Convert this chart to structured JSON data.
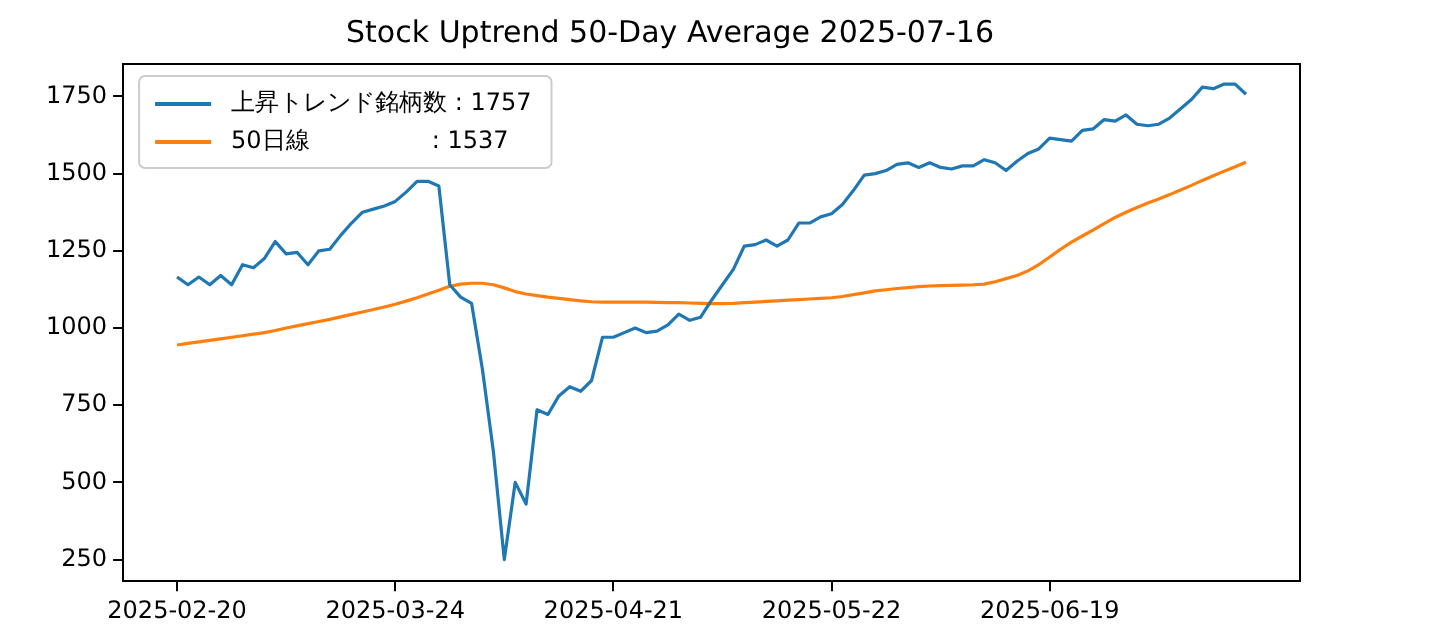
{
  "chart_data": {
    "type": "line",
    "title": "Stock Uptrend 50-Day Average 2025-07-16",
    "categories": [
      "2025-02-20",
      null,
      null,
      null,
      null,
      null,
      null,
      null,
      null,
      null,
      null,
      null,
      null,
      null,
      null,
      null,
      null,
      null,
      null,
      null,
      "2025-03-24",
      null,
      null,
      null,
      null,
      null,
      null,
      null,
      null,
      null,
      null,
      null,
      null,
      null,
      null,
      null,
      null,
      null,
      null,
      null,
      "2025-04-21",
      null,
      null,
      null,
      null,
      null,
      null,
      null,
      null,
      null,
      null,
      null,
      null,
      null,
      null,
      null,
      null,
      null,
      null,
      null,
      "2025-05-22",
      null,
      null,
      null,
      null,
      null,
      null,
      null,
      null,
      null,
      null,
      null,
      null,
      null,
      null,
      null,
      null,
      null,
      null,
      null,
      "2025-06-19",
      null,
      null,
      null,
      null,
      null,
      null,
      null,
      null,
      null,
      null,
      null,
      null,
      null,
      null,
      null,
      null,
      null,
      null
    ],
    "series": [
      {
        "name": "上昇トレンド銘柄数 : 1757",
        "color": "#1f77b4",
        "values": [
          1165,
          1140,
          1165,
          1140,
          1170,
          1140,
          1205,
          1195,
          1225,
          1280,
          1240,
          1245,
          1205,
          1250,
          1255,
          1300,
          1340,
          1375,
          1385,
          1395,
          1410,
          1440,
          1475,
          1475,
          1460,
          1140,
          1100,
          1080,
          865,
          600,
          250,
          500,
          430,
          735,
          720,
          780,
          810,
          795,
          830,
          970,
          970,
          985,
          1000,
          985,
          990,
          1010,
          1045,
          1025,
          1035,
          1090,
          1140,
          1190,
          1265,
          1270,
          1285,
          1265,
          1285,
          1340,
          1340,
          1360,
          1370,
          1400,
          1445,
          1495,
          1500,
          1510,
          1530,
          1535,
          1520,
          1535,
          1520,
          1515,
          1525,
          1525,
          1545,
          1535,
          1510,
          1540,
          1565,
          1580,
          1615,
          1610,
          1605,
          1640,
          1645,
          1675,
          1670,
          1690,
          1660,
          1655,
          1660,
          1680,
          1710,
          1740,
          1780,
          1775,
          1790,
          1790,
          1757
        ]
      },
      {
        "name": "50日線                : 1537",
        "color": "#ff7f0e",
        "values": [
          945,
          950,
          955,
          960,
          965,
          970,
          975,
          980,
          985,
          992,
          1000,
          1007,
          1014,
          1021,
          1028,
          1036,
          1044,
          1052,
          1060,
          1068,
          1077,
          1087,
          1098,
          1110,
          1122,
          1135,
          1142,
          1145,
          1145,
          1140,
          1130,
          1118,
          1110,
          1105,
          1100,
          1096,
          1092,
          1088,
          1085,
          1084,
          1084,
          1084,
          1084,
          1084,
          1083,
          1082,
          1082,
          1081,
          1080,
          1079,
          1079,
          1080,
          1082,
          1084,
          1086,
          1088,
          1090,
          1092,
          1094,
          1096,
          1098,
          1102,
          1108,
          1114,
          1120,
          1124,
          1128,
          1131,
          1134,
          1136,
          1137,
          1138,
          1139,
          1140,
          1142,
          1150,
          1160,
          1170,
          1185,
          1205,
          1230,
          1255,
          1278,
          1298,
          1318,
          1338,
          1358,
          1375,
          1390,
          1405,
          1418,
          1432,
          1447,
          1462,
          1478,
          1493,
          1508,
          1522,
          1537
        ]
      }
    ],
    "ylim": [
      180,
      1855
    ],
    "yticks": [
      250,
      500,
      750,
      1000,
      1250,
      1500,
      1750
    ],
    "grid": false,
    "legend": "top left"
  }
}
